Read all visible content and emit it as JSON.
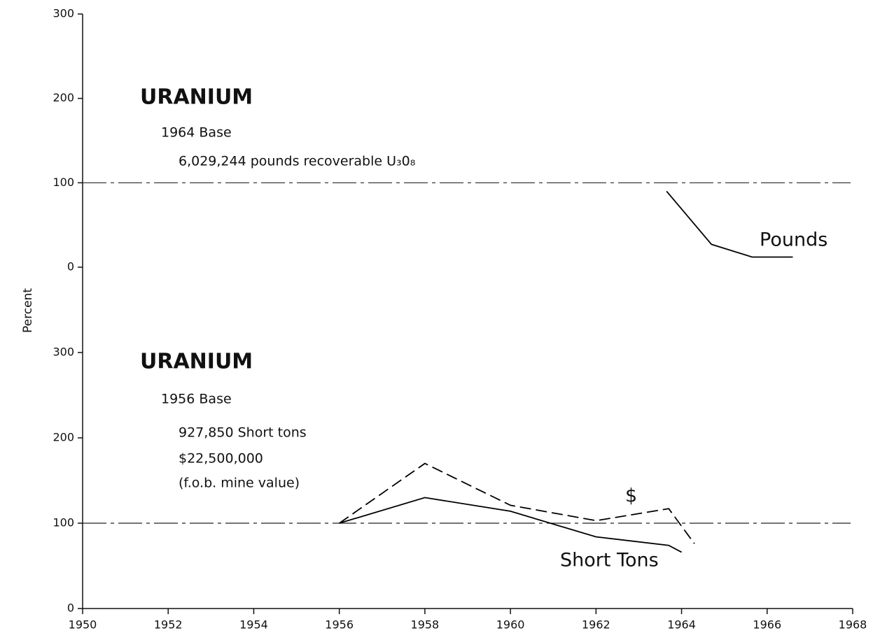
{
  "chart_data": [
    {
      "type": "line",
      "ylabel": "Percent",
      "annotations": [
        "URANIUM",
        "1964 Base",
        "6,029,244 pounds recoverable U₃0₈"
      ],
      "xlim": [
        1950,
        1968
      ],
      "ylim": [
        0,
        300
      ],
      "yticks": [
        0,
        100,
        200,
        300
      ],
      "hline": 100,
      "series": [
        {
          "name": "Pounds",
          "color": "#000000",
          "dash": "solid",
          "x": [
            1963.65,
            1964.7,
            1965.65,
            1966.6
          ],
          "values": [
            90,
            27,
            12,
            12
          ]
        }
      ]
    },
    {
      "type": "line",
      "annotations": [
        "URANIUM",
        "1956 Base",
        "927,850 Short tons",
        "$22,500,000",
        "(f.o.b. mine value)"
      ],
      "xlim": [
        1950,
        1968
      ],
      "xticks": [
        1950,
        1952,
        1954,
        1956,
        1958,
        1960,
        1962,
        1964,
        1966,
        1968
      ],
      "ylim": [
        0,
        300
      ],
      "yticks": [
        0,
        100,
        200,
        300
      ],
      "hline": 100,
      "series": [
        {
          "name": "Short Tons",
          "color": "#000000",
          "dash": "solid",
          "x": [
            1956,
            1958,
            1960,
            1962,
            1963.7,
            1964
          ],
          "values": [
            100,
            130,
            114,
            84,
            74,
            66
          ]
        },
        {
          "name": "$",
          "color": "#000000",
          "dash": "dashed",
          "x": [
            1956,
            1958,
            1960,
            1962,
            1963.7,
            1964.3
          ],
          "values": [
            100,
            170,
            121,
            103,
            117,
            76
          ]
        }
      ]
    }
  ]
}
